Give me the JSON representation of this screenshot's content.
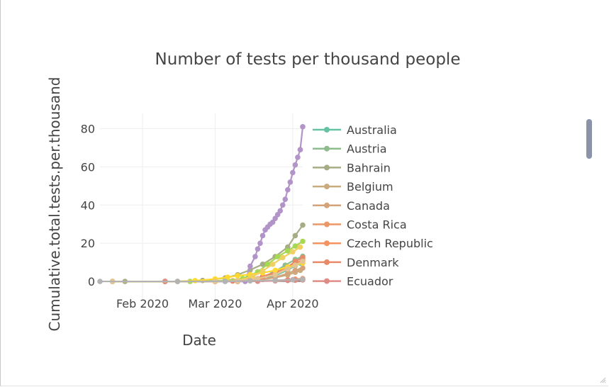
{
  "chart_data": {
    "type": "line",
    "title": "Number of tests per thousand people",
    "xlabel": "Date",
    "ylabel": "Cumulative.total.tests.per.thousand",
    "x_start": "2020-01-15",
    "x_end": "2020-04-05",
    "x_ticks": [
      {
        "date": "2020-02-01",
        "label": "Feb 2020"
      },
      {
        "date": "2020-03-01",
        "label": "Mar 2020"
      },
      {
        "date": "2020-04-01",
        "label": "Apr 2020"
      }
    ],
    "ylim": [
      -10,
      88
    ],
    "y_ticks": [
      0,
      20,
      40,
      60,
      80
    ],
    "grid": true,
    "legend_position": "right",
    "series": [
      {
        "name": "Australia",
        "color": "#66c2a5",
        "x": [
          "2020-01-20",
          "2020-02-10",
          "2020-03-01",
          "2020-03-10",
          "2020-03-20",
          "2020-03-25",
          "2020-03-30",
          "2020-04-02",
          "2020-04-04"
        ],
        "y": [
          0,
          0,
          0,
          0.2,
          1.0,
          3.0,
          6.0,
          8.2,
          9.6
        ]
      },
      {
        "name": "Austria",
        "color": "#8fbc8f",
        "x": [
          "2020-01-20",
          "2020-02-10",
          "2020-03-01",
          "2020-03-10",
          "2020-03-18",
          "2020-03-24",
          "2020-03-29",
          "2020-04-02",
          "2020-04-05"
        ],
        "y": [
          0,
          0,
          0,
          0.2,
          1.5,
          4.5,
          8.5,
          11.5,
          13.2
        ]
      },
      {
        "name": "Bahrain",
        "color": "#a6ad84",
        "x": [
          "2020-01-25",
          "2020-02-15",
          "2020-02-25",
          "2020-03-05",
          "2020-03-10",
          "2020-03-15",
          "2020-03-20",
          "2020-03-25",
          "2020-03-30",
          "2020-04-02",
          "2020-04-05"
        ],
        "y": [
          0,
          0,
          0.5,
          1.8,
          3.5,
          6.0,
          9.0,
          13.0,
          18.0,
          24.0,
          29.5
        ]
      },
      {
        "name": "Belgium",
        "color": "#c9ab7e",
        "x": [
          "2020-01-20",
          "2020-02-10",
          "2020-03-01",
          "2020-03-10",
          "2020-03-18",
          "2020-03-25",
          "2020-03-30",
          "2020-04-02",
          "2020-04-04"
        ],
        "y": [
          0,
          0,
          0,
          0.1,
          0.7,
          2.0,
          3.4,
          4.8,
          5.8
        ]
      },
      {
        "name": "Canada",
        "color": "#d4a37a",
        "x": [
          "2020-01-20",
          "2020-02-10",
          "2020-03-01",
          "2020-03-10",
          "2020-03-18",
          "2020-03-25",
          "2020-03-30",
          "2020-04-02",
          "2020-04-05"
        ],
        "y": [
          0,
          0,
          0,
          0.1,
          0.8,
          2.2,
          4.2,
          5.8,
          7.0
        ]
      },
      {
        "name": "Costa Rica",
        "color": "#ec9767",
        "x": [
          "2020-01-20",
          "2020-02-10",
          "2020-03-01",
          "2020-03-10",
          "2020-03-18",
          "2020-03-25",
          "2020-03-30",
          "2020-04-02",
          "2020-04-05"
        ],
        "y": [
          0,
          0,
          0,
          0,
          0.2,
          0.5,
          0.9,
          1.2,
          1.5
        ]
      },
      {
        "name": "Czech Republic",
        "color": "#f4935f",
        "x": [
          "2020-01-20",
          "2020-02-10",
          "2020-03-01",
          "2020-03-08",
          "2020-03-14",
          "2020-03-20",
          "2020-03-25",
          "2020-03-30",
          "2020-04-02",
          "2020-04-05"
        ],
        "y": [
          0,
          0,
          0,
          0.2,
          1.0,
          2.5,
          4.8,
          7.5,
          9.8,
          11.0
        ]
      },
      {
        "name": "Denmark",
        "color": "#e88a68",
        "x": [
          "2020-01-20",
          "2020-02-10",
          "2020-03-01",
          "2020-03-08",
          "2020-03-14",
          "2020-03-20",
          "2020-03-25",
          "2020-03-30",
          "2020-04-02",
          "2020-04-05"
        ],
        "y": [
          0,
          0,
          0,
          0.3,
          1.2,
          2.6,
          4.5,
          7.5,
          10.5,
          12.5
        ]
      },
      {
        "name": "Ecuador",
        "color": "#e08c86",
        "x": [
          "2020-01-20",
          "2020-02-10",
          "2020-03-01",
          "2020-03-10",
          "2020-03-18",
          "2020-03-25",
          "2020-03-30",
          "2020-04-02",
          "2020-04-05"
        ],
        "y": [
          0,
          0,
          0,
          0,
          0.1,
          0.3,
          0.5,
          0.6,
          0.8
        ]
      },
      {
        "color": "#b394c8",
        "x": [
          "2020-01-20",
          "2020-02-15",
          "2020-03-05",
          "2020-03-13",
          "2020-03-15",
          "2020-03-17",
          "2020-03-18",
          "2020-03-19",
          "2020-03-20",
          "2020-03-21",
          "2020-03-22",
          "2020-03-23",
          "2020-03-24",
          "2020-03-25",
          "2020-03-26",
          "2020-03-27",
          "2020-03-28",
          "2020-03-29",
          "2020-03-30",
          "2020-03-31",
          "2020-04-01",
          "2020-04-02",
          "2020-04-03",
          "2020-04-04"
        ],
        "y": [
          0,
          0,
          0,
          0,
          8,
          13,
          17,
          20,
          24,
          27,
          28.5,
          30,
          31,
          33,
          35,
          37,
          40,
          43,
          48,
          52,
          57,
          61,
          65,
          69
        ]
      },
      {
        "color": "#b394c8",
        "x": [
          "2020-04-04",
          "2020-04-05"
        ],
        "y": [
          69,
          81
        ]
      },
      {
        "color": "#a6d854",
        "x": [
          "2020-01-20",
          "2020-02-20",
          "2020-03-05",
          "2020-03-12",
          "2020-03-18",
          "2020-03-22",
          "2020-03-26",
          "2020-03-30",
          "2020-04-02",
          "2020-04-05"
        ],
        "y": [
          0,
          0,
          0.5,
          1.5,
          5.0,
          9.0,
          13.0,
          16.0,
          18.5,
          21.0
        ]
      },
      {
        "color": "#ffd92f",
        "x": [
          "2020-01-20",
          "2020-02-15",
          "2020-02-22",
          "2020-03-01",
          "2020-03-06",
          "2020-03-10",
          "2020-03-15",
          "2020-03-20",
          "2020-03-25",
          "2020-03-30",
          "2020-04-05"
        ],
        "y": [
          0,
          0,
          0.4,
          1.3,
          2.2,
          3.0,
          3.6,
          4.5,
          5.8,
          7.5,
          9.6
        ]
      },
      {
        "color": "#f0d060",
        "x": [
          "2020-01-20",
          "2020-03-01",
          "2020-03-10",
          "2020-03-16",
          "2020-03-20",
          "2020-03-24",
          "2020-03-28",
          "2020-04-01",
          "2020-04-04"
        ],
        "y": [
          0,
          0,
          0.5,
          2.5,
          5.5,
          9.0,
          12.5,
          15.5,
          18.0
        ]
      },
      {
        "color": "#e5c494",
        "x": [
          "2020-01-20",
          "2020-03-01",
          "2020-03-10",
          "2020-03-18",
          "2020-03-25",
          "2020-03-30",
          "2020-04-02",
          "2020-04-05"
        ],
        "y": [
          0,
          0,
          0.2,
          1.5,
          3.5,
          6.5,
          8.5,
          10.5
        ]
      },
      {
        "color": "#b3b3b3",
        "x": [
          "2020-01-15",
          "2020-02-15",
          "2020-03-05",
          "2020-03-15",
          "2020-03-25",
          "2020-04-01",
          "2020-04-05"
        ],
        "y": [
          0,
          0,
          0.1,
          0.3,
          0.6,
          0.9,
          1.1
        ]
      }
    ]
  }
}
